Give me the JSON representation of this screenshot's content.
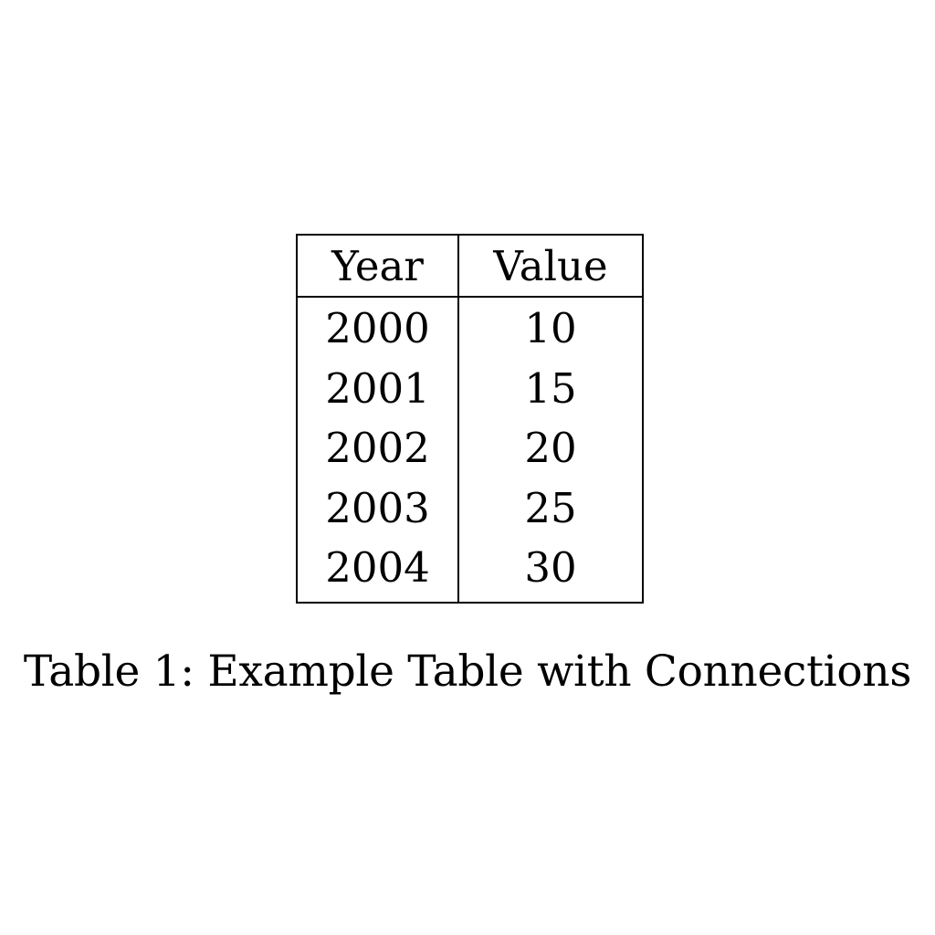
{
  "table": {
    "headers": [
      "Year",
      "Value"
    ],
    "rows": [
      [
        "2000",
        "10"
      ],
      [
        "2001",
        "15"
      ],
      [
        "2002",
        "20"
      ],
      [
        "2003",
        "25"
      ],
      [
        "2004",
        "30"
      ]
    ]
  },
  "caption": "Table 1: Example Table with Connections"
}
